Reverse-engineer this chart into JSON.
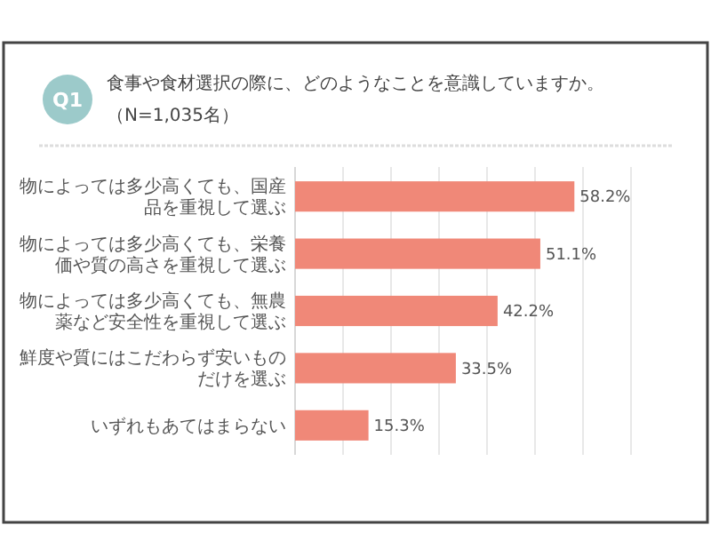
{
  "chart_data": {
    "type": "bar",
    "orientation": "horizontal",
    "title": "食事や食材選択の際に、どのようなことを意識していますか。",
    "subtitle": "（N=1,035名）",
    "annotations": [
      "Q1"
    ],
    "categories": [
      "物によっては多少高くても、国産品を重視して選ぶ",
      "物によっては多少高くても、栄養価や質の高さを重視して選ぶ",
      "物によっては多少高くても、無農薬など安全性を重視して選ぶ",
      "鮮度や質にはこだわらず安いものだけを選ぶ",
      "いずれもあてはまらない"
    ],
    "values": [
      58.2,
      51.1,
      42.2,
      33.5,
      15.3
    ],
    "value_labels": [
      "58.2%",
      "51.1%",
      "42.2%",
      "33.5%",
      "15.3%"
    ],
    "color": "#f08878",
    "xlim": [
      0,
      70
    ],
    "xticks": [
      {
        "value": 0,
        "label": null
      },
      {
        "value": 10,
        "label": null
      },
      {
        "value": 20,
        "label": null
      },
      {
        "value": 30,
        "label": null
      },
      {
        "value": 40,
        "label": null
      },
      {
        "value": 50,
        "label": null
      },
      {
        "value": 60,
        "label": null
      },
      {
        "value": 70,
        "label": null
      }
    ],
    "grid": "x"
  }
}
